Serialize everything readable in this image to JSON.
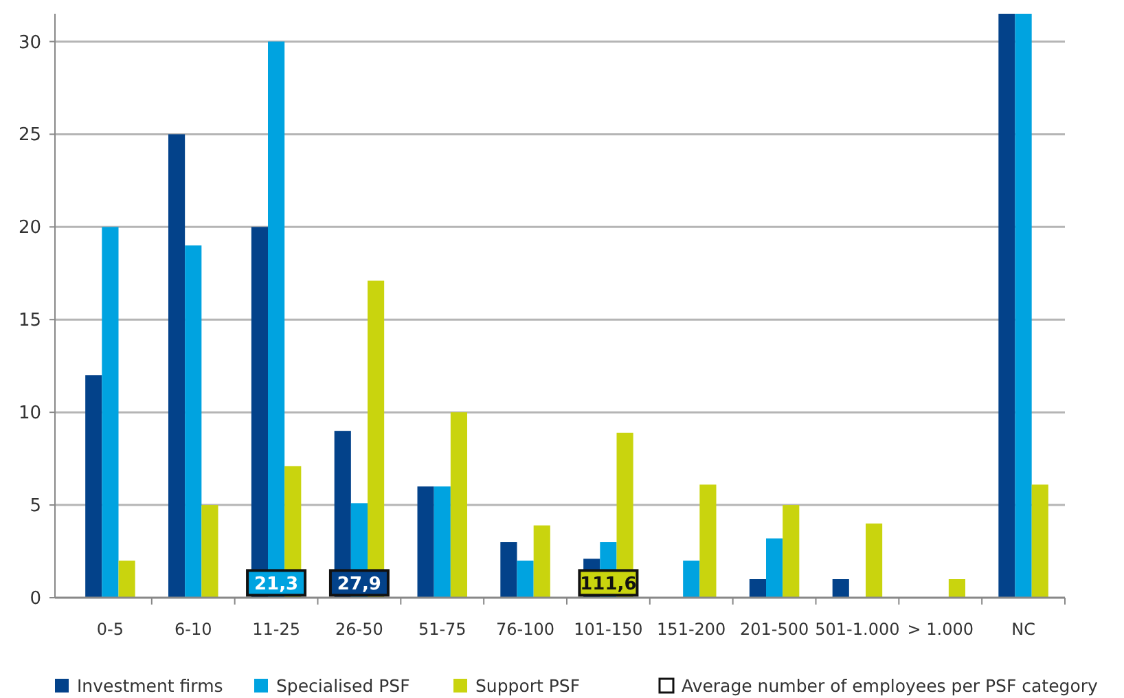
{
  "chart_data": {
    "type": "bar",
    "categories": [
      "0-5",
      "6-10",
      "11-25",
      "26-50",
      "51-75",
      "76-100",
      "101-150",
      "151-200",
      "201-500",
      "501-1.000",
      "> 1.000",
      "NC"
    ],
    "series": [
      {
        "name": "Investment firms",
        "color": "#03428a",
        "values": [
          12,
          25,
          20,
          9,
          6,
          3,
          2.1,
          null,
          1,
          1,
          null,
          31.5
        ]
      },
      {
        "name": "Specialised PSF",
        "color": "#00a3e0",
        "values": [
          20,
          19,
          30,
          5.1,
          6,
          2,
          3,
          2,
          3.2,
          null,
          null,
          31.5
        ]
      },
      {
        "name": "Support PSF",
        "color": "#c9d40e",
        "values": [
          2,
          5,
          7.1,
          17.1,
          10,
          3.9,
          8.9,
          6.1,
          5,
          4,
          1,
          6.1
        ]
      }
    ],
    "ylim": [
      0,
      31.5
    ],
    "yticks": [
      0,
      5,
      10,
      15,
      20,
      25,
      30
    ],
    "grid": "y",
    "legend": "bottom",
    "annotations": [
      {
        "text": "21,3",
        "x": "11-25",
        "y": 0.8
      },
      {
        "text": "27,9",
        "x": "26-50",
        "y": 0.8
      },
      {
        "text": "111,6",
        "x": "101-150",
        "y": 0.8
      },
      "Average number of employees per PSF category"
    ]
  }
}
